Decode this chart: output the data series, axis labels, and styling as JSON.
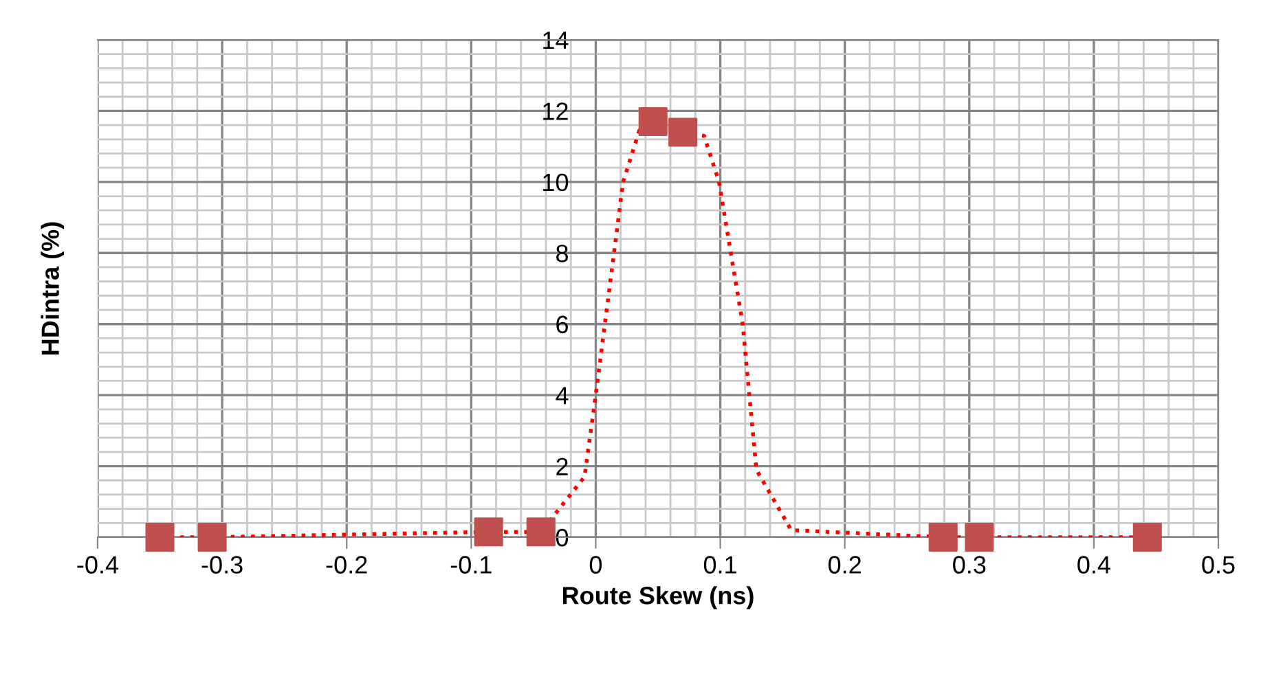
{
  "chart_data": {
    "type": "line",
    "xlabel": "Route Skew (ns)",
    "ylabel": "HDintra (%)",
    "xlim": [
      -0.4,
      0.5
    ],
    "xticks": [
      -0.4,
      -0.3,
      -0.2,
      -0.1,
      0,
      0.1,
      0.2,
      0.3,
      0.4,
      0.5
    ],
    "ylim": [
      0,
      14
    ],
    "yticks": [
      0,
      2,
      4,
      6,
      8,
      10,
      12,
      14
    ],
    "grid": true,
    "legend": false,
    "series": [
      {
        "color": "#ff0000",
        "line_style": "dotted",
        "marker": "none",
        "x": [
          -0.35,
          -0.308,
          -0.086,
          -0.044,
          -0.009,
          0,
          0.022,
          0.035,
          0.046,
          0.07,
          0.087,
          0.099,
          0.118,
          0.129,
          0.157,
          0.279,
          0.308,
          0.443
        ],
        "values": [
          0,
          0,
          0.15,
          0.15,
          1.7,
          4,
          10,
          11.45,
          11.7,
          11.4,
          11.3,
          10,
          6,
          1.9,
          0.2,
          0,
          0,
          0
        ]
      },
      {
        "type": "scatter",
        "color": "#c0504d",
        "marker": "square",
        "x": [
          -0.35,
          -0.308,
          -0.086,
          -0.044,
          0.046,
          0.07,
          0.279,
          0.308,
          0.443
        ],
        "values": [
          0,
          0,
          0.15,
          0.15,
          11.7,
          11.4,
          0,
          0,
          0
        ]
      }
    ]
  }
}
